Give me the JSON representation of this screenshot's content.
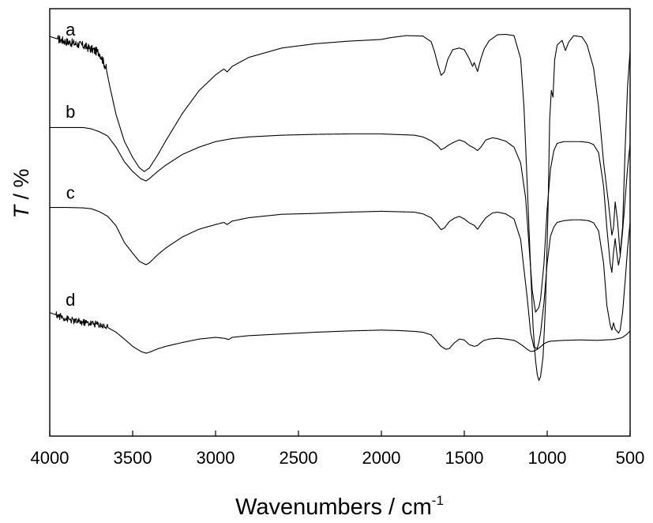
{
  "chart_data": {
    "type": "line",
    "xlabel": "Wavenumbers / cm",
    "xlabel_superscript": "-1",
    "ylabel_italic": "T",
    "ylabel_rest": " / %",
    "xlim": [
      4000,
      500
    ],
    "x_reversed": true,
    "ylim": [
      0,
      100
    ],
    "y_ticks_shown": false,
    "grid": false,
    "legend": "none",
    "x_ticks": [
      4000,
      3500,
      3000,
      2500,
      2000,
      1500,
      1000,
      500
    ],
    "x_tick_labels": [
      "4000",
      "3500",
      "3000",
      "2500",
      "2000",
      "1500",
      "1000",
      "500"
    ],
    "series": [
      {
        "name": "a",
        "noise": {
          "from": 3950,
          "to": 3660,
          "amplitude": 1.0
        },
        "points": [
          [
            4000,
            93.5
          ],
          [
            3900,
            92.3
          ],
          [
            3800,
            91.4
          ],
          [
            3700,
            89.7
          ],
          [
            3660,
            86.1
          ],
          [
            3640,
            82.2
          ],
          [
            3600,
            75.2
          ],
          [
            3550,
            69.0
          ],
          [
            3500,
            65.2
          ],
          [
            3460,
            62.8
          ],
          [
            3430,
            61.9
          ],
          [
            3400,
            62.7
          ],
          [
            3350,
            65.7
          ],
          [
            3300,
            69.1
          ],
          [
            3200,
            75.5
          ],
          [
            3100,
            80.8
          ],
          [
            3000,
            84.5
          ],
          [
            2950,
            85.9
          ],
          [
            2930,
            85.2
          ],
          [
            2900,
            86.5
          ],
          [
            2800,
            88.6
          ],
          [
            2600,
            90.8
          ],
          [
            2400,
            91.8
          ],
          [
            2200,
            92.4
          ],
          [
            2000,
            92.8
          ],
          [
            1950,
            93.2
          ],
          [
            1850,
            93.7
          ],
          [
            1750,
            93.6
          ],
          [
            1700,
            92.3
          ],
          [
            1680,
            90.0
          ],
          [
            1660,
            87.0
          ],
          [
            1640,
            84.4
          ],
          [
            1620,
            85.2
          ],
          [
            1600,
            88.1
          ],
          [
            1570,
            90.4
          ],
          [
            1530,
            90.8
          ],
          [
            1500,
            90.4
          ],
          [
            1470,
            88.3
          ],
          [
            1450,
            86.5
          ],
          [
            1440,
            87.4
          ],
          [
            1420,
            85.3
          ],
          [
            1400,
            88.3
          ],
          [
            1380,
            90.6
          ],
          [
            1350,
            92.5
          ],
          [
            1300,
            93.9
          ],
          [
            1250,
            94.0
          ],
          [
            1200,
            93.7
          ],
          [
            1160,
            88.3
          ],
          [
            1140,
            77.0
          ],
          [
            1120,
            58.5
          ],
          [
            1100,
            39.2
          ],
          [
            1085,
            25.4
          ],
          [
            1070,
            17.6
          ],
          [
            1060,
            14.4
          ],
          [
            1050,
            13.0
          ],
          [
            1040,
            13.9
          ],
          [
            1025,
            18.5
          ],
          [
            1010,
            31.0
          ],
          [
            995,
            52.7
          ],
          [
            985,
            74.1
          ],
          [
            975,
            80.9
          ],
          [
            965,
            79.3
          ],
          [
            955,
            88.0
          ],
          [
            940,
            91.5
          ],
          [
            910,
            92.6
          ],
          [
            890,
            90.2
          ],
          [
            870,
            92.2
          ],
          [
            840,
            93.7
          ],
          [
            790,
            93.4
          ],
          [
            760,
            91.6
          ],
          [
            720,
            86.1
          ],
          [
            690,
            77.0
          ],
          [
            660,
            64.1
          ],
          [
            630,
            54.4
          ],
          [
            610,
            47.0
          ],
          [
            600,
            48.8
          ],
          [
            590,
            54.8
          ],
          [
            575,
            50.0
          ],
          [
            560,
            42.5
          ],
          [
            545,
            49.0
          ],
          [
            530,
            67.2
          ],
          [
            515,
            82.1
          ],
          [
            500,
            90.1
          ]
        ]
      },
      {
        "name": "b",
        "points": [
          [
            4000,
            72.2
          ],
          [
            3900,
            72.2
          ],
          [
            3800,
            72.2
          ],
          [
            3750,
            71.9
          ],
          [
            3700,
            71.2
          ],
          [
            3650,
            70.2
          ],
          [
            3600,
            67.6
          ],
          [
            3550,
            64.2
          ],
          [
            3500,
            61.9
          ],
          [
            3450,
            60.2
          ],
          [
            3420,
            59.7
          ],
          [
            3400,
            60.2
          ],
          [
            3350,
            61.9
          ],
          [
            3300,
            63.4
          ],
          [
            3200,
            65.9
          ],
          [
            3100,
            67.6
          ],
          [
            3000,
            68.9
          ],
          [
            2900,
            69.6
          ],
          [
            2800,
            70.0
          ],
          [
            2600,
            70.4
          ],
          [
            2400,
            70.6
          ],
          [
            2200,
            70.7
          ],
          [
            2000,
            70.7
          ],
          [
            1800,
            70.4
          ],
          [
            1750,
            70.0
          ],
          [
            1700,
            69.1
          ],
          [
            1660,
            67.9
          ],
          [
            1640,
            67.0
          ],
          [
            1620,
            67.4
          ],
          [
            1590,
            68.2
          ],
          [
            1560,
            68.8
          ],
          [
            1530,
            69.3
          ],
          [
            1500,
            68.9
          ],
          [
            1470,
            68.0
          ],
          [
            1440,
            67.4
          ],
          [
            1420,
            66.8
          ],
          [
            1400,
            67.6
          ],
          [
            1370,
            69.3
          ],
          [
            1330,
            69.8
          ],
          [
            1300,
            69.6
          ],
          [
            1250,
            69.0
          ],
          [
            1200,
            67.6
          ],
          [
            1160,
            63.9
          ],
          [
            1130,
            55.7
          ],
          [
            1110,
            44.8
          ],
          [
            1090,
            34.0
          ],
          [
            1070,
            29.0
          ],
          [
            1050,
            30.1
          ],
          [
            1040,
            32.0
          ],
          [
            1020,
            40.1
          ],
          [
            1000,
            53.2
          ],
          [
            980,
            62.5
          ],
          [
            960,
            66.8
          ],
          [
            940,
            68.5
          ],
          [
            900,
            68.9
          ],
          [
            850,
            68.9
          ],
          [
            800,
            68.9
          ],
          [
            750,
            68.7
          ],
          [
            720,
            68.2
          ],
          [
            690,
            66.3
          ],
          [
            660,
            58.5
          ],
          [
            640,
            48.6
          ],
          [
            620,
            40.4
          ],
          [
            610,
            38.3
          ],
          [
            600,
            43.0
          ],
          [
            590,
            46.2
          ],
          [
            580,
            42.7
          ],
          [
            570,
            40.0
          ],
          [
            560,
            42.1
          ],
          [
            545,
            48.0
          ],
          [
            530,
            55.3
          ],
          [
            515,
            62.9
          ],
          [
            500,
            68.3
          ]
        ]
      },
      {
        "name": "c",
        "points": [
          [
            4000,
            53.5
          ],
          [
            3900,
            53.5
          ],
          [
            3800,
            53.4
          ],
          [
            3750,
            53.2
          ],
          [
            3700,
            52.5
          ],
          [
            3650,
            51.4
          ],
          [
            3600,
            49.2
          ],
          [
            3550,
            45.3
          ],
          [
            3500,
            42.8
          ],
          [
            3460,
            40.9
          ],
          [
            3420,
            40.1
          ],
          [
            3400,
            40.5
          ],
          [
            3350,
            42.4
          ],
          [
            3300,
            44.0
          ],
          [
            3200,
            46.6
          ],
          [
            3100,
            48.4
          ],
          [
            3000,
            49.5
          ],
          [
            2950,
            50.0
          ],
          [
            2930,
            49.5
          ],
          [
            2900,
            50.3
          ],
          [
            2800,
            51.1
          ],
          [
            2600,
            51.9
          ],
          [
            2400,
            52.1
          ],
          [
            2200,
            52.4
          ],
          [
            2000,
            52.6
          ],
          [
            1800,
            52.4
          ],
          [
            1750,
            52.0
          ],
          [
            1700,
            51.1
          ],
          [
            1660,
            49.3
          ],
          [
            1640,
            48.3
          ],
          [
            1620,
            48.7
          ],
          [
            1590,
            50.2
          ],
          [
            1560,
            51.0
          ],
          [
            1530,
            51.4
          ],
          [
            1500,
            50.8
          ],
          [
            1470,
            49.9
          ],
          [
            1440,
            49.3
          ],
          [
            1420,
            48.4
          ],
          [
            1400,
            49.5
          ],
          [
            1370,
            51.1
          ],
          [
            1330,
            52.2
          ],
          [
            1300,
            52.4
          ],
          [
            1250,
            52.0
          ],
          [
            1200,
            50.8
          ],
          [
            1160,
            46.0
          ],
          [
            1140,
            39.0
          ],
          [
            1120,
            32.2
          ],
          [
            1100,
            24.2
          ],
          [
            1080,
            20.8
          ],
          [
            1060,
            20.5
          ],
          [
            1050,
            22.0
          ],
          [
            1040,
            24.1
          ],
          [
            1020,
            31.0
          ],
          [
            1000,
            40.5
          ],
          [
            980,
            46.8
          ],
          [
            960,
            48.9
          ],
          [
            940,
            50.0
          ],
          [
            900,
            50.4
          ],
          [
            850,
            50.6
          ],
          [
            800,
            50.6
          ],
          [
            750,
            50.4
          ],
          [
            720,
            49.9
          ],
          [
            690,
            48.0
          ],
          [
            660,
            40.5
          ],
          [
            640,
            30.5
          ],
          [
            620,
            26.0
          ],
          [
            610,
            24.8
          ],
          [
            600,
            26.5
          ],
          [
            590,
            25.0
          ],
          [
            580,
            24.6
          ],
          [
            570,
            24.1
          ],
          [
            560,
            24.8
          ],
          [
            545,
            29.0
          ],
          [
            530,
            36.2
          ],
          [
            515,
            44.0
          ],
          [
            500,
            50.0
          ]
        ]
      },
      {
        "name": "d",
        "noise": {
          "from": 3960,
          "to": 3650,
          "amplitude": 0.8
        },
        "points": [
          [
            4000,
            28.9
          ],
          [
            3950,
            28.2
          ],
          [
            3900,
            27.5
          ],
          [
            3850,
            26.9
          ],
          [
            3800,
            26.6
          ],
          [
            3750,
            26.4
          ],
          [
            3700,
            26.1
          ],
          [
            3650,
            25.4
          ],
          [
            3600,
            24.3
          ],
          [
            3550,
            22.7
          ],
          [
            3500,
            21.0
          ],
          [
            3450,
            19.8
          ],
          [
            3420,
            19.4
          ],
          [
            3400,
            19.6
          ],
          [
            3350,
            20.4
          ],
          [
            3300,
            21.0
          ],
          [
            3200,
            21.9
          ],
          [
            3100,
            22.7
          ],
          [
            3000,
            23.1
          ],
          [
            2950,
            22.9
          ],
          [
            2920,
            22.6
          ],
          [
            2900,
            23.1
          ],
          [
            2800,
            23.5
          ],
          [
            2600,
            23.9
          ],
          [
            2400,
            24.3
          ],
          [
            2200,
            24.6
          ],
          [
            2000,
            24.8
          ],
          [
            1900,
            24.7
          ],
          [
            1800,
            24.5
          ],
          [
            1750,
            24.3
          ],
          [
            1700,
            23.7
          ],
          [
            1670,
            22.4
          ],
          [
            1640,
            21.0
          ],
          [
            1610,
            20.3
          ],
          [
            1590,
            20.5
          ],
          [
            1560,
            21.8
          ],
          [
            1530,
            22.7
          ],
          [
            1500,
            22.5
          ],
          [
            1470,
            21.4
          ],
          [
            1440,
            21.0
          ],
          [
            1420,
            21.2
          ],
          [
            1400,
            21.9
          ],
          [
            1380,
            22.4
          ],
          [
            1350,
            22.7
          ],
          [
            1300,
            22.9
          ],
          [
            1250,
            22.7
          ],
          [
            1200,
            22.4
          ],
          [
            1180,
            22.0
          ],
          [
            1150,
            21.2
          ],
          [
            1120,
            20.3
          ],
          [
            1100,
            19.8
          ],
          [
            1080,
            19.9
          ],
          [
            1060,
            20.3
          ],
          [
            1040,
            20.9
          ],
          [
            1020,
            21.6
          ],
          [
            1000,
            22.0
          ],
          [
            980,
            22.2
          ],
          [
            900,
            22.4
          ],
          [
            800,
            22.5
          ],
          [
            700,
            22.4
          ],
          [
            600,
            22.6
          ],
          [
            550,
            23.0
          ],
          [
            520,
            23.8
          ],
          [
            500,
            24.6
          ]
        ]
      }
    ]
  }
}
